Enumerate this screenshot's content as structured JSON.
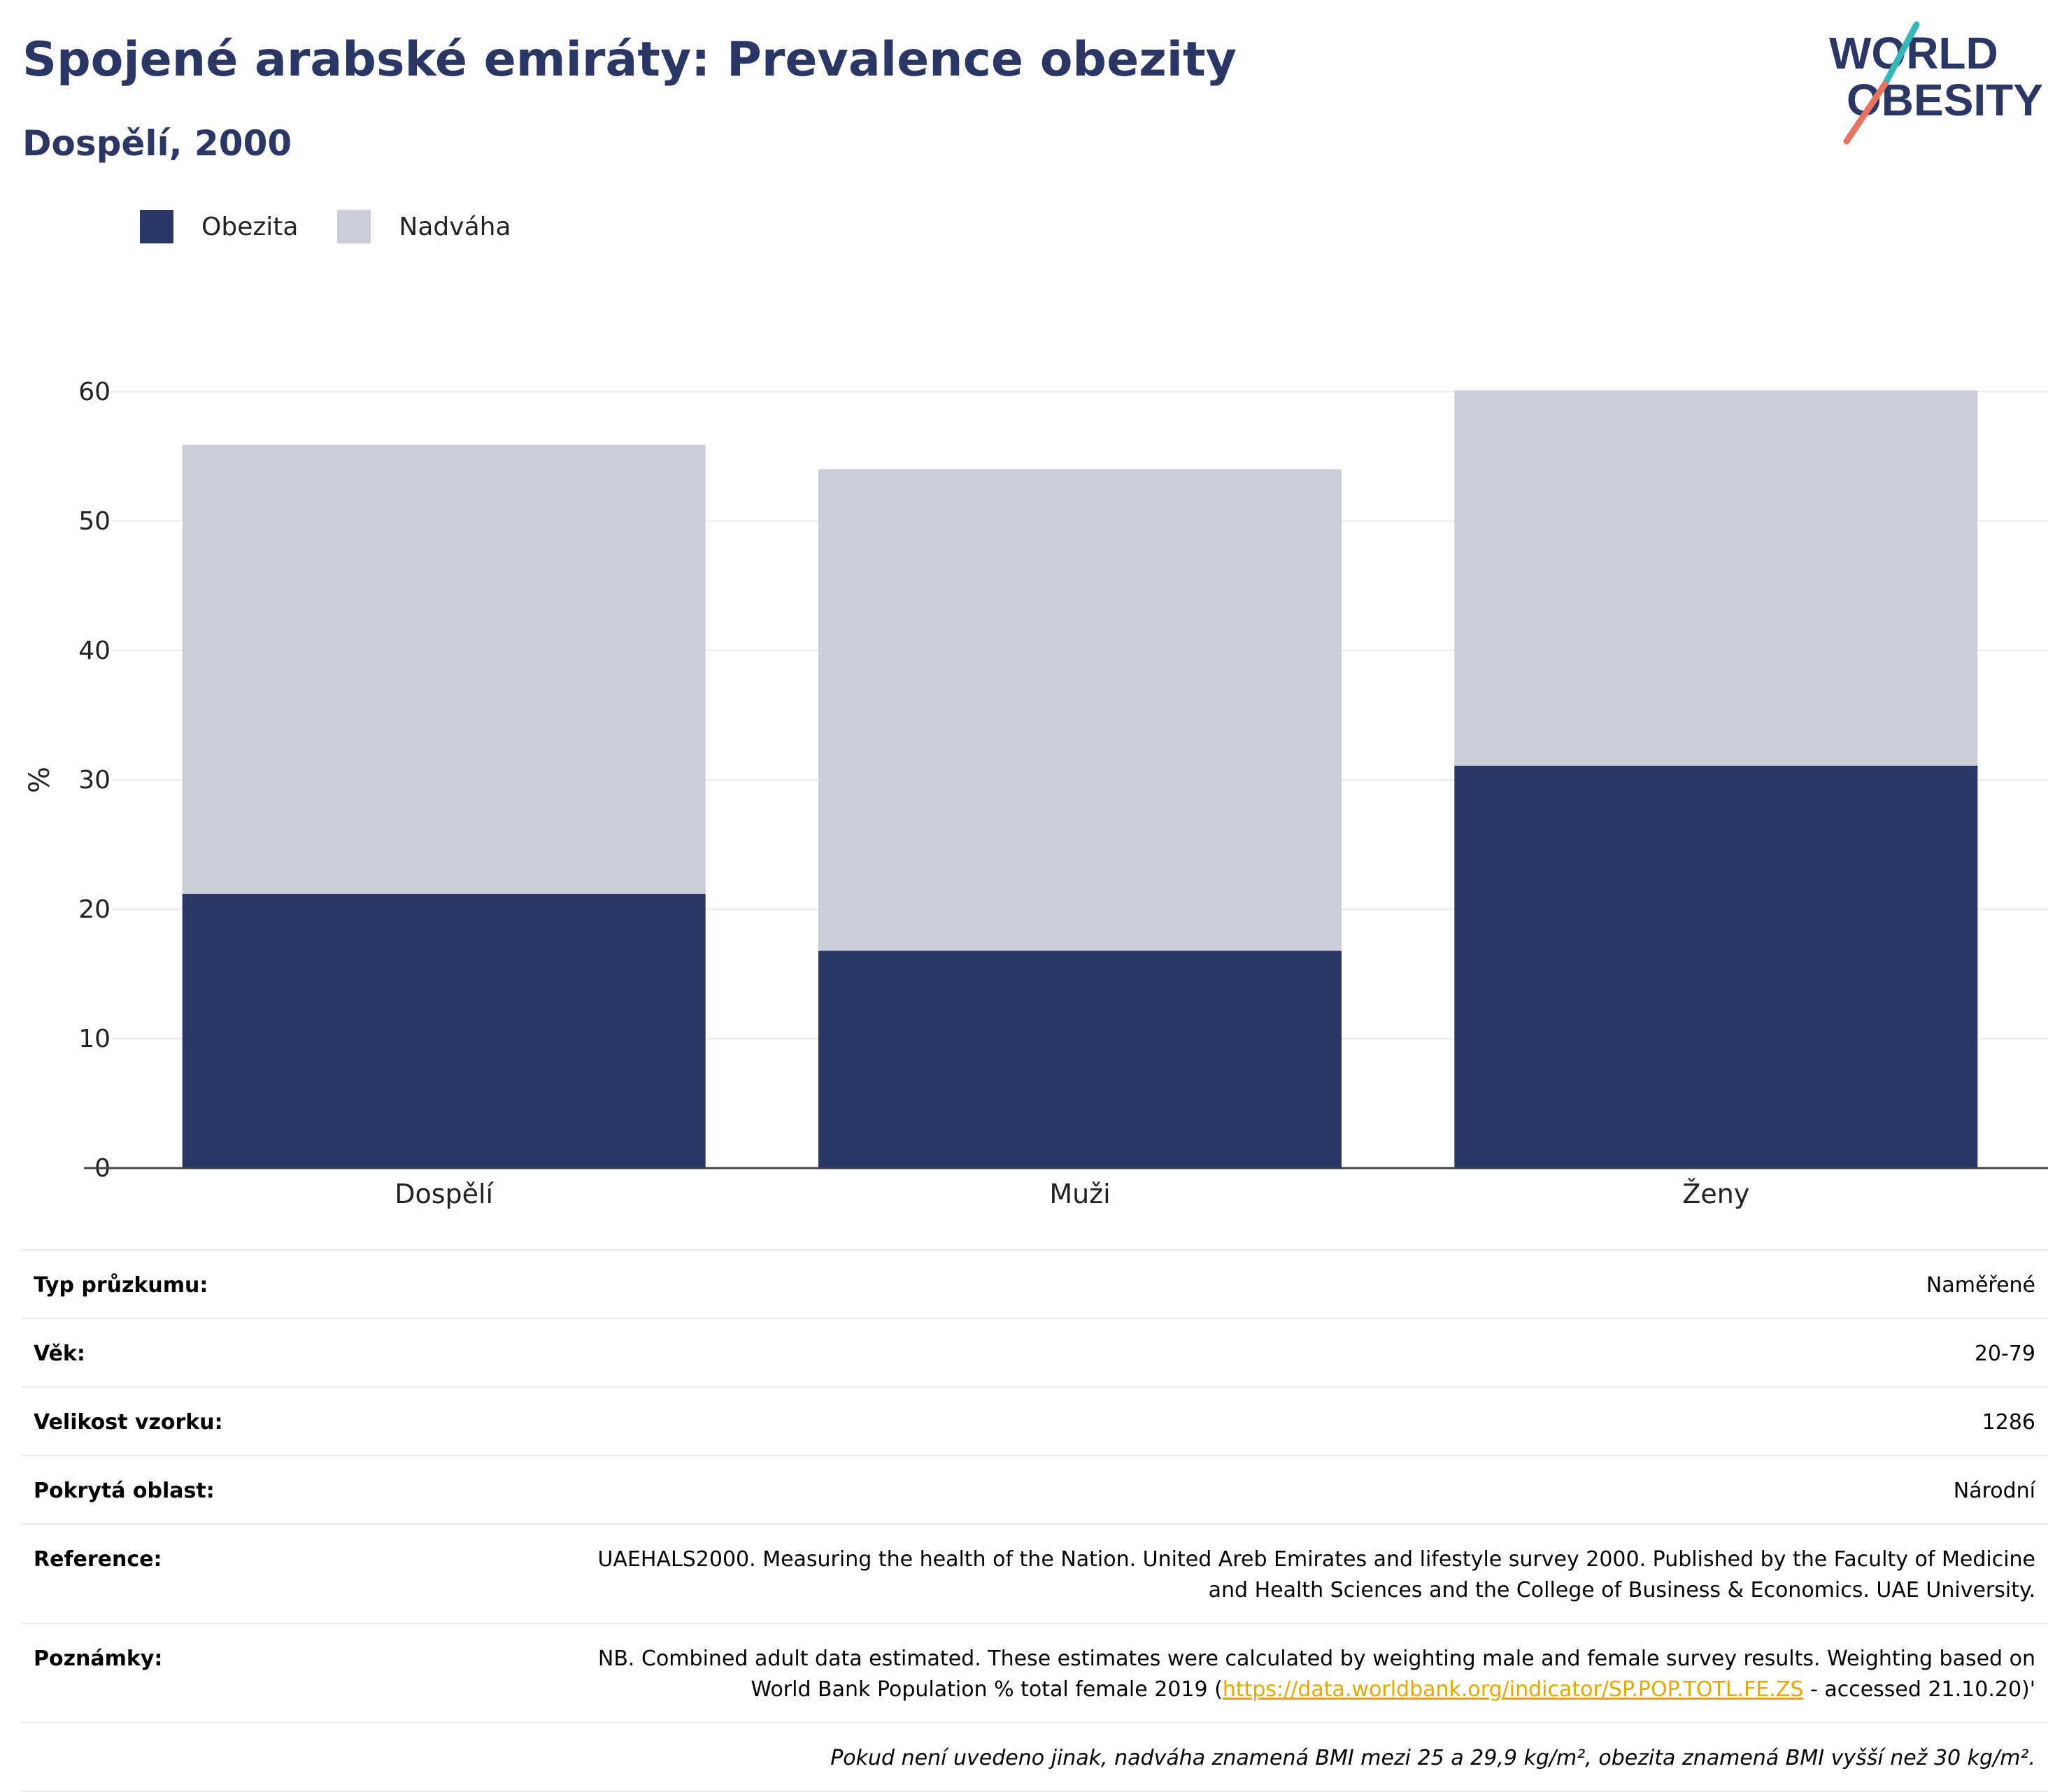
{
  "header": {
    "title": "Spojené arabské emiráty: Prevalence obezity",
    "subtitle": "Dospělí, 2000"
  },
  "logo": {
    "line1": "WORLD",
    "line2": "OBESITY"
  },
  "colors": {
    "obesity": "#2a3663",
    "overweight": "#cbcdd8",
    "accent_teal": "#36b6b9",
    "accent_coral": "#e6735f"
  },
  "chart_data": {
    "type": "bar",
    "stacked": true,
    "categories": [
      "Dospělí",
      "Muži",
      "Ženy"
    ],
    "series": [
      {
        "name": "Obezita",
        "color": "#2a3663",
        "values": [
          21.2,
          16.8,
          31.1
        ]
      },
      {
        "name": "Nadváha",
        "color": "#cbcdd8",
        "values": [
          34.7,
          37.2,
          29.0
        ]
      }
    ],
    "ylabel": "%",
    "ylim": [
      0,
      60
    ],
    "yticks": [
      0,
      10,
      20,
      30,
      40,
      50,
      60
    ],
    "grid": true,
    "legend": "top-left"
  },
  "info": [
    {
      "label": "Typ průzkumu:",
      "value": "Naměřené"
    },
    {
      "label": "Věk:",
      "value": "20-79"
    },
    {
      "label": "Velikost vzorku:",
      "value": "1286"
    },
    {
      "label": "Pokrytá oblast:",
      "value": "Národní"
    },
    {
      "label": "Reference:",
      "value": "UAEHALS2000. Measuring the health of the Nation. United Areb Emirates and lifestyle survey 2000. Published by the Faculty of Medicine and Health Sciences and the College of Business & Economics. UAE University."
    },
    {
      "label": "Poznámky:",
      "value_before": "NB. Combined adult data estimated. These estimates were calculated by weighting male and female survey results. Weighting based on World Bank Population % total female 2019 (",
      "link": "https://data.worldbank.org/indicator/SP.POP.TOTL.FE.ZS",
      "value_after": " - accessed 21.10.20)'"
    }
  ],
  "footnote": "Pokud není uvedeno jinak, nadváha znamená BMI mezi 25 a 29,9 kg/m², obezita znamená BMI vyšší než 30 kg/m²."
}
